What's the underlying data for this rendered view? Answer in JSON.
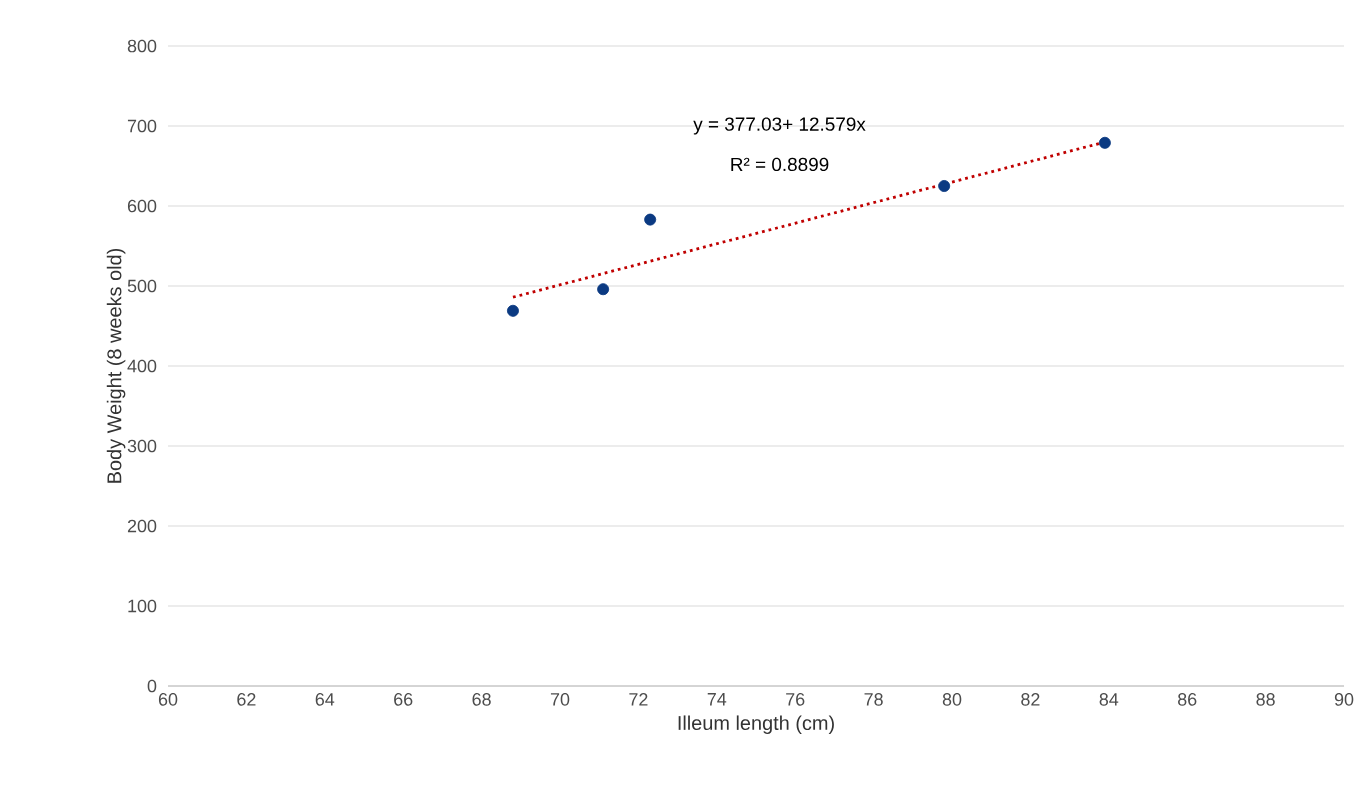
{
  "chart_data": {
    "type": "scatter",
    "xlabel": "Illeum length (cm)",
    "ylabel": "Body Weight (8 weeks old)",
    "xlim": [
      60,
      90
    ],
    "xticks": [
      60,
      62,
      64,
      66,
      68,
      70,
      72,
      74,
      76,
      78,
      80,
      82,
      84,
      86,
      88,
      90
    ],
    "ylim": [
      0,
      800
    ],
    "yticks": [
      0,
      100,
      200,
      300,
      400,
      500,
      600,
      700,
      800
    ],
    "grid": "y",
    "annotations": [
      "y = 377.03+ 12.579x",
      "R² = 0.8899"
    ],
    "series": [
      {
        "color": "#0b3a82",
        "marker": "circle",
        "x": [
          68.8,
          71.1,
          72.3,
          79.8,
          83.9
        ],
        "values": [
          469,
          496,
          583,
          625,
          679
        ]
      },
      {
        "type": "line",
        "color": "#c00000",
        "line_style": "dotted",
        "marker": "none",
        "x": [
          68.8,
          83.9
        ],
        "values": [
          486,
          680
        ]
      }
    ]
  }
}
